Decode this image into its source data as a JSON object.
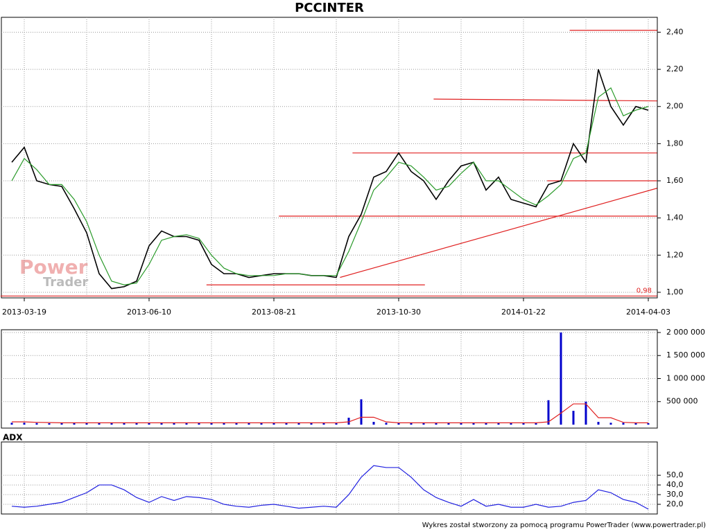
{
  "chart_data": [
    {
      "type": "line",
      "title": "PCCINTER",
      "categories": [
        null,
        "2013-03-19",
        null,
        null,
        null,
        null,
        null,
        null,
        null,
        null,
        null,
        "2013-06-10",
        null,
        null,
        null,
        null,
        null,
        null,
        null,
        null,
        null,
        "2013-08-21",
        null,
        null,
        null,
        null,
        null,
        null,
        null,
        null,
        null,
        "2013-10-30",
        null,
        null,
        null,
        null,
        null,
        null,
        null,
        null,
        null,
        "2014-01-22",
        null,
        null,
        null,
        null,
        null,
        null,
        null,
        null,
        null,
        "2014-04-03"
      ],
      "series": [
        {
          "color": "#000000",
          "values": [
            1.7,
            1.78,
            1.6,
            1.58,
            1.57,
            1.45,
            1.32,
            1.1,
            1.02,
            1.03,
            1.06,
            1.25,
            1.33,
            1.3,
            1.3,
            1.28,
            1.15,
            1.1,
            1.1,
            1.08,
            1.09,
            1.1,
            1.1,
            1.1,
            1.09,
            1.09,
            1.08,
            1.3,
            1.42,
            1.62,
            1.65,
            1.75,
            1.65,
            1.6,
            1.5,
            1.6,
            1.68,
            1.7,
            1.55,
            1.62,
            1.5,
            1.48,
            1.46,
            1.58,
            1.6,
            1.8,
            1.7,
            2.2,
            2.0,
            1.9,
            2.0,
            1.98
          ]
        },
        {
          "color": "#2a9a2a",
          "values": [
            1.6,
            1.72,
            1.66,
            1.58,
            1.58,
            1.5,
            1.38,
            1.2,
            1.06,
            1.04,
            1.05,
            1.15,
            1.28,
            1.3,
            1.31,
            1.29,
            1.2,
            1.13,
            1.1,
            1.09,
            1.09,
            1.09,
            1.1,
            1.1,
            1.09,
            1.09,
            1.09,
            1.22,
            1.38,
            1.55,
            1.62,
            1.7,
            1.68,
            1.62,
            1.55,
            1.57,
            1.64,
            1.7,
            1.6,
            1.6,
            1.55,
            1.5,
            1.47,
            1.52,
            1.58,
            1.72,
            1.75,
            2.05,
            2.1,
            1.95,
            1.98,
            2.0
          ]
        }
      ],
      "trend_lines": [
        {
          "color": "#e02020",
          "x": [
            44.7,
            51.7
          ],
          "y": [
            2.41,
            2.41
          ]
        },
        {
          "color": "#e02020",
          "x": [
            33.8,
            51.7
          ],
          "y": [
            2.04,
            2.03
          ]
        },
        {
          "color": "#e02020",
          "x": [
            27.3,
            51.7
          ],
          "y": [
            1.75,
            1.75
          ]
        },
        {
          "color": "#e02020",
          "x": [
            42.9,
            51.7
          ],
          "y": [
            1.6,
            1.6
          ]
        },
        {
          "color": "#e02020",
          "x": [
            21.4,
            51.7
          ],
          "y": [
            1.41,
            1.41
          ]
        },
        {
          "color": "#e02020",
          "x": [
            15.6,
            33.1
          ],
          "y": [
            1.04,
            1.04
          ]
        },
        {
          "color": "#e02020",
          "x": [
            26.3,
            51.7
          ],
          "y": [
            1.08,
            1.56
          ]
        },
        {
          "color": "#e02020",
          "x": [
            -0.9,
            51.7
          ],
          "y": [
            0.98,
            0.98
          ]
        }
      ],
      "annotation": "0,98",
      "watermark": [
        "Power",
        "Trader"
      ],
      "ylim": [
        0.97,
        2.48
      ],
      "yticks": [
        {
          "value": 1.0,
          "label": "1,00"
        },
        {
          "value": 1.2,
          "label": "1,20"
        },
        {
          "value": 1.4,
          "label": "1,40"
        },
        {
          "value": 1.6,
          "label": "1,60"
        },
        {
          "value": 1.8,
          "label": "1,80"
        },
        {
          "value": 2.0,
          "label": "2,00"
        },
        {
          "value": 2.2,
          "label": "2,20"
        },
        {
          "value": 2.4,
          "label": "2,40"
        }
      ],
      "grid": true
    },
    {
      "type": "bar",
      "series": [
        {
          "color": "#0000cc",
          "values": [
            40000,
            40000,
            35000,
            30000,
            30000,
            30000,
            35000,
            40000,
            30000,
            30000,
            30000,
            40000,
            35000,
            30000,
            30000,
            30000,
            30000,
            30000,
            30000,
            35000,
            30000,
            30000,
            30000,
            30000,
            30000,
            30000,
            30000,
            150000,
            550000,
            60000,
            40000,
            40000,
            40000,
            30000,
            30000,
            30000,
            30000,
            30000,
            30000,
            30000,
            30000,
            30000,
            30000,
            530000,
            2000000,
            300000,
            500000,
            60000,
            40000,
            40000,
            40000,
            30000
          ]
        },
        {
          "type": "line",
          "color": "#e02020",
          "values": [
            60000,
            60000,
            50000,
            45000,
            40000,
            40000,
            40000,
            40000,
            40000,
            40000,
            40000,
            40000,
            40000,
            40000,
            40000,
            40000,
            40000,
            40000,
            40000,
            40000,
            40000,
            40000,
            40000,
            40000,
            40000,
            40000,
            40000,
            60000,
            160000,
            160000,
            60000,
            40000,
            40000,
            40000,
            40000,
            40000,
            40000,
            40000,
            40000,
            40000,
            40000,
            40000,
            40000,
            60000,
            250000,
            450000,
            450000,
            150000,
            150000,
            50000,
            40000,
            40000
          ]
        }
      ],
      "ylim": [
        0,
        2030000
      ],
      "yticks": [
        {
          "value": 500000,
          "label": "500 000"
        },
        {
          "value": 1000000,
          "label": "1 000 000"
        },
        {
          "value": 1500000,
          "label": "1 500 000"
        },
        {
          "value": 2000000,
          "label": "2 000 000"
        }
      ],
      "grid": true
    },
    {
      "type": "line",
      "title": "ADX",
      "series": [
        {
          "color": "#2020e0",
          "values": [
            18,
            17,
            18,
            20,
            22,
            27,
            32,
            40,
            40,
            35,
            27,
            22,
            28,
            24,
            28,
            27,
            25,
            20,
            18,
            17,
            19,
            20,
            18,
            16,
            17,
            18,
            17,
            30,
            48,
            60,
            58,
            58,
            48,
            35,
            27,
            22,
            18,
            25,
            18,
            20,
            17,
            17,
            20,
            17,
            18,
            22,
            24,
            35,
            32,
            25,
            22,
            15
          ]
        }
      ],
      "ylim": [
        10,
        83
      ],
      "yticks": [
        {
          "value": 20,
          "label": "20,0"
        },
        {
          "value": 30,
          "label": "30,0"
        },
        {
          "value": 40,
          "label": "40,0"
        },
        {
          "value": 50,
          "label": "50,0"
        }
      ],
      "grid": true
    }
  ],
  "footer": "Wykres został stworzony za pomocą programu PowerTrader (www.powertrader.pl)"
}
